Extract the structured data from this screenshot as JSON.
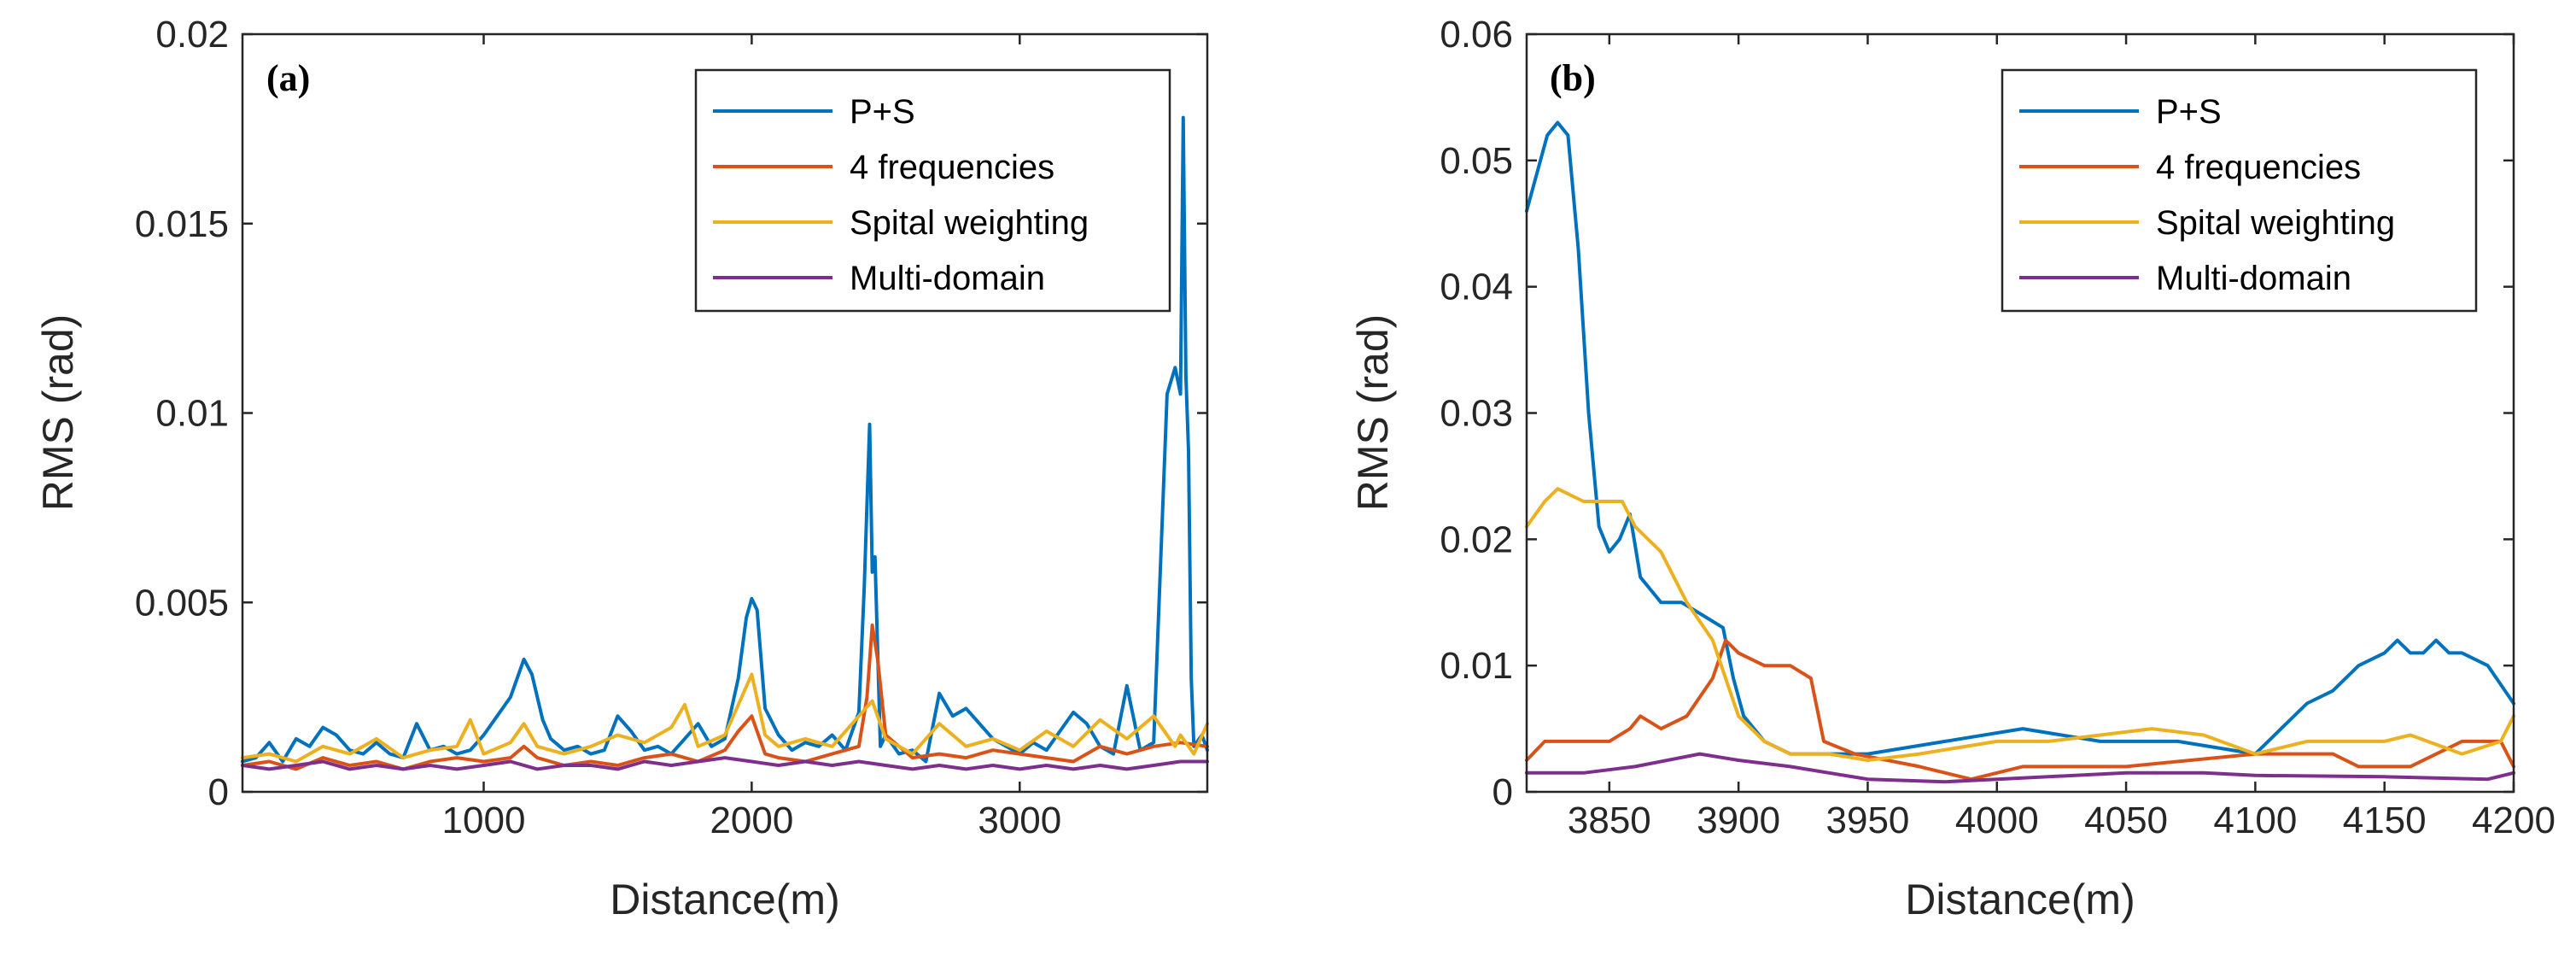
{
  "colors": {
    "ps": "#0072BD",
    "four_freq": "#D95319",
    "spatial": "#EDB120",
    "multi": "#7E2F8E"
  },
  "chart_data": [
    {
      "type": "line",
      "panel_label": "(a)",
      "xlabel": "Distance(m)",
      "ylabel": "RMS (rad)",
      "xlim": [
        100,
        3700
      ],
      "ylim": [
        0,
        0.02
      ],
      "xticks": [
        1000,
        2000,
        3000
      ],
      "xtick_labels": [
        "1000",
        "2000",
        "3000"
      ],
      "yticks": [
        0,
        0.005,
        0.01,
        0.015,
        0.02
      ],
      "ytick_labels": [
        "0",
        "0.005",
        "0.01",
        "0.015",
        "0.02"
      ],
      "legend_position": "top-right",
      "series": [
        {
          "name": "P+S",
          "color_key": "ps",
          "x": [
            100,
            150,
            200,
            250,
            300,
            350,
            400,
            450,
            500,
            550,
            600,
            650,
            700,
            750,
            800,
            850,
            900,
            950,
            1000,
            1050,
            1100,
            1150,
            1180,
            1220,
            1250,
            1300,
            1350,
            1400,
            1450,
            1500,
            1550,
            1600,
            1650,
            1700,
            1750,
            1800,
            1850,
            1900,
            1950,
            1980,
            2000,
            2020,
            2050,
            2100,
            2150,
            2200,
            2250,
            2300,
            2350,
            2400,
            2420,
            2440,
            2450,
            2460,
            2480,
            2500,
            2550,
            2600,
            2650,
            2700,
            2750,
            2800,
            2850,
            2900,
            2950,
            3000,
            3050,
            3100,
            3150,
            3200,
            3250,
            3300,
            3350,
            3400,
            3450,
            3500,
            3550,
            3580,
            3600,
            3610,
            3620,
            3630,
            3640,
            3650,
            3680,
            3700
          ],
          "y": [
            0.0008,
            0.0009,
            0.0013,
            0.0008,
            0.0014,
            0.0012,
            0.0017,
            0.0015,
            0.0011,
            0.001,
            0.0013,
            0.001,
            0.0009,
            0.0018,
            0.0011,
            0.0012,
            0.001,
            0.0011,
            0.0015,
            0.002,
            0.0025,
            0.0035,
            0.0031,
            0.0019,
            0.0014,
            0.0011,
            0.0012,
            0.001,
            0.0011,
            0.002,
            0.0016,
            0.0011,
            0.0012,
            0.001,
            0.0014,
            0.0018,
            0.0012,
            0.0014,
            0.003,
            0.0046,
            0.0051,
            0.0048,
            0.0022,
            0.0015,
            0.0011,
            0.0013,
            0.0012,
            0.0015,
            0.0011,
            0.0021,
            0.0054,
            0.0097,
            0.0058,
            0.0062,
            0.0012,
            0.0015,
            0.001,
            0.0011,
            0.0008,
            0.0026,
            0.002,
            0.0022,
            0.0018,
            0.0014,
            0.0012,
            0.001,
            0.0013,
            0.0011,
            0.0016,
            0.0021,
            0.0018,
            0.0012,
            0.001,
            0.0028,
            0.0011,
            0.0013,
            0.0105,
            0.0112,
            0.0105,
            0.0178,
            0.011,
            0.009,
            0.003,
            0.0012,
            0.0015,
            0.0011
          ]
        },
        {
          "name": "4 frequencies",
          "color_key": "four_freq",
          "x": [
            100,
            200,
            300,
            400,
            500,
            600,
            700,
            800,
            900,
            1000,
            1100,
            1150,
            1200,
            1300,
            1400,
            1500,
            1600,
            1700,
            1800,
            1900,
            1950,
            2000,
            2050,
            2100,
            2200,
            2300,
            2400,
            2430,
            2450,
            2470,
            2500,
            2600,
            2700,
            2800,
            2900,
            3000,
            3100,
            3200,
            3300,
            3400,
            3500,
            3600,
            3700
          ],
          "y": [
            0.0007,
            0.0008,
            0.0006,
            0.0009,
            0.0007,
            0.0008,
            0.0006,
            0.0008,
            0.0009,
            0.0008,
            0.0009,
            0.0012,
            0.0009,
            0.0007,
            0.0008,
            0.0007,
            0.0009,
            0.001,
            0.0008,
            0.0011,
            0.0016,
            0.002,
            0.001,
            0.0009,
            0.0008,
            0.001,
            0.0012,
            0.0025,
            0.0044,
            0.0035,
            0.0015,
            0.0009,
            0.001,
            0.0009,
            0.0011,
            0.001,
            0.0009,
            0.0008,
            0.0012,
            0.001,
            0.0012,
            0.0013,
            0.0012
          ]
        },
        {
          "name": "Spital weighting",
          "color_key": "spatial",
          "x": [
            100,
            200,
            300,
            400,
            500,
            600,
            700,
            800,
            900,
            950,
            1000,
            1100,
            1150,
            1200,
            1300,
            1400,
            1500,
            1600,
            1700,
            1750,
            1800,
            1900,
            1950,
            2000,
            2050,
            2100,
            2200,
            2300,
            2400,
            2450,
            2500,
            2600,
            2700,
            2800,
            2900,
            3000,
            3100,
            3200,
            3300,
            3400,
            3500,
            3580,
            3600,
            3650,
            3700
          ],
          "y": [
            0.0009,
            0.001,
            0.0008,
            0.0012,
            0.001,
            0.0014,
            0.0009,
            0.0011,
            0.0012,
            0.0019,
            0.001,
            0.0013,
            0.0018,
            0.0012,
            0.001,
            0.0012,
            0.0015,
            0.0013,
            0.0017,
            0.0023,
            0.0012,
            0.0015,
            0.0023,
            0.0031,
            0.0015,
            0.0012,
            0.0014,
            0.0012,
            0.002,
            0.0024,
            0.0014,
            0.001,
            0.0018,
            0.0012,
            0.0014,
            0.0011,
            0.0016,
            0.0012,
            0.0019,
            0.0014,
            0.002,
            0.0012,
            0.0015,
            0.001,
            0.0018
          ]
        },
        {
          "name": "Multi-domain",
          "color_key": "multi",
          "x": [
            100,
            200,
            300,
            400,
            500,
            600,
            700,
            800,
            900,
            1000,
            1100,
            1200,
            1300,
            1400,
            1500,
            1600,
            1700,
            1800,
            1900,
            2000,
            2100,
            2200,
            2300,
            2400,
            2500,
            2600,
            2700,
            2800,
            2900,
            3000,
            3100,
            3200,
            3300,
            3400,
            3500,
            3600,
            3700
          ],
          "y": [
            0.0007,
            0.0006,
            0.0007,
            0.0008,
            0.0006,
            0.0007,
            0.0006,
            0.0007,
            0.0006,
            0.0007,
            0.0008,
            0.0006,
            0.0007,
            0.0007,
            0.0006,
            0.0008,
            0.0007,
            0.0008,
            0.0009,
            0.0008,
            0.0007,
            0.0008,
            0.0007,
            0.0008,
            0.0007,
            0.0006,
            0.0007,
            0.0006,
            0.0007,
            0.0006,
            0.0007,
            0.0006,
            0.0007,
            0.0006,
            0.0007,
            0.0008,
            0.0008
          ]
        }
      ]
    },
    {
      "type": "line",
      "panel_label": "(b)",
      "xlabel": "Distance(m)",
      "ylabel": "RMS (rad)",
      "xlim": [
        3818,
        4200
      ],
      "ylim": [
        0,
        0.06
      ],
      "xticks": [
        3850,
        3900,
        3950,
        4000,
        4050,
        4100,
        4150,
        4200
      ],
      "xtick_labels": [
        "3850",
        "3900",
        "3950",
        "4000",
        "4050",
        "4100",
        "4150",
        "4200"
      ],
      "yticks": [
        0,
        0.01,
        0.02,
        0.03,
        0.04,
        0.05,
        0.06
      ],
      "ytick_labels": [
        "0",
        "0.01",
        "0.02",
        "0.03",
        "0.04",
        "0.05",
        "0.06"
      ],
      "legend_position": "top-right",
      "series": [
        {
          "name": "P+S",
          "color_key": "ps",
          "x": [
            3818,
            3822,
            3826,
            3830,
            3834,
            3838,
            3842,
            3846,
            3850,
            3854,
            3858,
            3862,
            3866,
            3870,
            3878,
            3886,
            3894,
            3898,
            3902,
            3910,
            3920,
            3930,
            3950,
            3980,
            4010,
            4040,
            4070,
            4100,
            4110,
            4120,
            4130,
            4140,
            4150,
            4155,
            4160,
            4165,
            4170,
            4175,
            4180,
            4190,
            4200
          ],
          "y": [
            0.046,
            0.049,
            0.052,
            0.053,
            0.052,
            0.043,
            0.03,
            0.021,
            0.019,
            0.02,
            0.022,
            0.017,
            0.016,
            0.015,
            0.015,
            0.014,
            0.013,
            0.009,
            0.006,
            0.004,
            0.003,
            0.003,
            0.003,
            0.004,
            0.005,
            0.004,
            0.004,
            0.003,
            0.005,
            0.007,
            0.008,
            0.01,
            0.011,
            0.012,
            0.011,
            0.011,
            0.012,
            0.011,
            0.011,
            0.01,
            0.007
          ]
        },
        {
          "name": "4 frequencies",
          "color_key": "four_freq",
          "x": [
            3818,
            3825,
            3835,
            3850,
            3858,
            3862,
            3870,
            3880,
            3890,
            3895,
            3900,
            3910,
            3920,
            3928,
            3933,
            3945,
            3970,
            3990,
            4010,
            4050,
            4100,
            4130,
            4140,
            4160,
            4180,
            4195,
            4200
          ],
          "y": [
            0.0025,
            0.004,
            0.004,
            0.004,
            0.005,
            0.006,
            0.005,
            0.006,
            0.009,
            0.012,
            0.011,
            0.01,
            0.01,
            0.009,
            0.004,
            0.003,
            0.002,
            0.001,
            0.002,
            0.002,
            0.003,
            0.003,
            0.002,
            0.002,
            0.004,
            0.004,
            0.002
          ]
        },
        {
          "name": "Spital weighting",
          "color_key": "spatial",
          "x": [
            3818,
            3825,
            3830,
            3840,
            3850,
            3855,
            3860,
            3870,
            3880,
            3890,
            3900,
            3910,
            3920,
            3935,
            3950,
            3970,
            4000,
            4020,
            4040,
            4060,
            4080,
            4100,
            4120,
            4140,
            4150,
            4160,
            4180,
            4195,
            4200
          ],
          "y": [
            0.021,
            0.023,
            0.024,
            0.023,
            0.023,
            0.023,
            0.021,
            0.019,
            0.015,
            0.012,
            0.006,
            0.004,
            0.003,
            0.003,
            0.0025,
            0.003,
            0.004,
            0.004,
            0.0045,
            0.005,
            0.0045,
            0.003,
            0.004,
            0.004,
            0.004,
            0.0045,
            0.003,
            0.004,
            0.006
          ]
        },
        {
          "name": "Multi-domain",
          "color_key": "multi",
          "x": [
            3818,
            3840,
            3860,
            3885,
            3900,
            3920,
            3950,
            3980,
            4000,
            4050,
            4080,
            4100,
            4150,
            4190,
            4200
          ],
          "y": [
            0.0015,
            0.0015,
            0.002,
            0.003,
            0.0025,
            0.002,
            0.001,
            0.0008,
            0.001,
            0.0015,
            0.0015,
            0.0013,
            0.0012,
            0.001,
            0.0015
          ]
        }
      ]
    }
  ]
}
